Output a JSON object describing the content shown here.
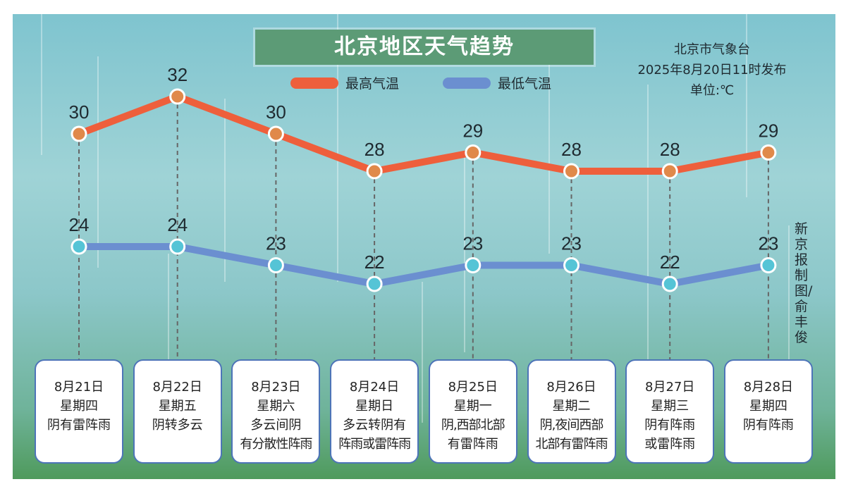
{
  "chart_data": {
    "type": "line",
    "title": "北京地区天气趋势",
    "source": "北京市气象台",
    "issued": "2025年8月20日11时发布",
    "unit": "单位:℃",
    "credit": "新京报制图/俞丰俊",
    "categories": [
      {
        "date": "8月21日",
        "weekday": "星期四",
        "weather": [
          "阴有雷阵雨"
        ]
      },
      {
        "date": "8月22日",
        "weekday": "星期五",
        "weather": [
          "阴转多云"
        ]
      },
      {
        "date": "8月23日",
        "weekday": "星期六",
        "weather": [
          "多云间阴",
          "有分散性阵雨"
        ]
      },
      {
        "date": "8月24日",
        "weekday": "星期日",
        "weather": [
          "多云转阴有",
          "阵雨或雷阵雨"
        ]
      },
      {
        "date": "8月25日",
        "weekday": "星期一",
        "weather": [
          "阴,西部北部",
          "有雷阵雨"
        ]
      },
      {
        "date": "8月26日",
        "weekday": "星期二",
        "weather": [
          "阴,夜间西部",
          "北部有雷阵雨"
        ]
      },
      {
        "date": "8月27日",
        "weekday": "星期三",
        "weather": [
          "阴有阵雨",
          "或雷阵雨"
        ]
      },
      {
        "date": "8月28日",
        "weekday": "星期四",
        "weather": [
          "阴有阵雨"
        ]
      }
    ],
    "series": [
      {
        "name": "最高气温",
        "color": "#ee5f3c",
        "marker": "#e0894a",
        "values": [
          30,
          32,
          30,
          28,
          29,
          28,
          28,
          29
        ]
      },
      {
        "name": "最低气温",
        "color": "#6b8fd0",
        "marker": "#55c4d6",
        "values": [
          24,
          24,
          23,
          22,
          23,
          23,
          22,
          23
        ]
      }
    ]
  }
}
